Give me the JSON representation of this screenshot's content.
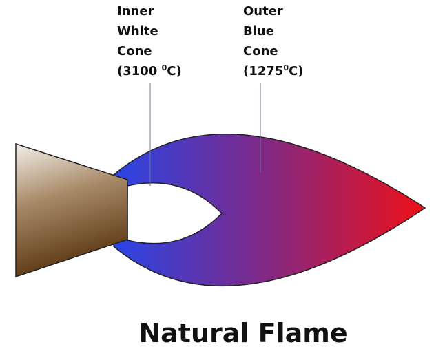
{
  "labels": {
    "inner": {
      "line1": "Inner",
      "line2": "White",
      "line3": "Cone",
      "temp_open": "(3100 ",
      "temp_sup": "0",
      "temp_close": "C)"
    },
    "outer": {
      "line1": "Outer",
      "line2": "Blue",
      "line3": "Cone",
      "temp_open": "(1275",
      "temp_sup": "0",
      "temp_close": "C)"
    }
  },
  "title": "Natural Flame",
  "colors": {
    "flame_base": "#2a45e6",
    "flame_mid": "#7a2a8c",
    "flame_tip": "#ee1018",
    "nozzle_light": "#f4f0ea",
    "nozzle_dark": "#5a3610"
  }
}
